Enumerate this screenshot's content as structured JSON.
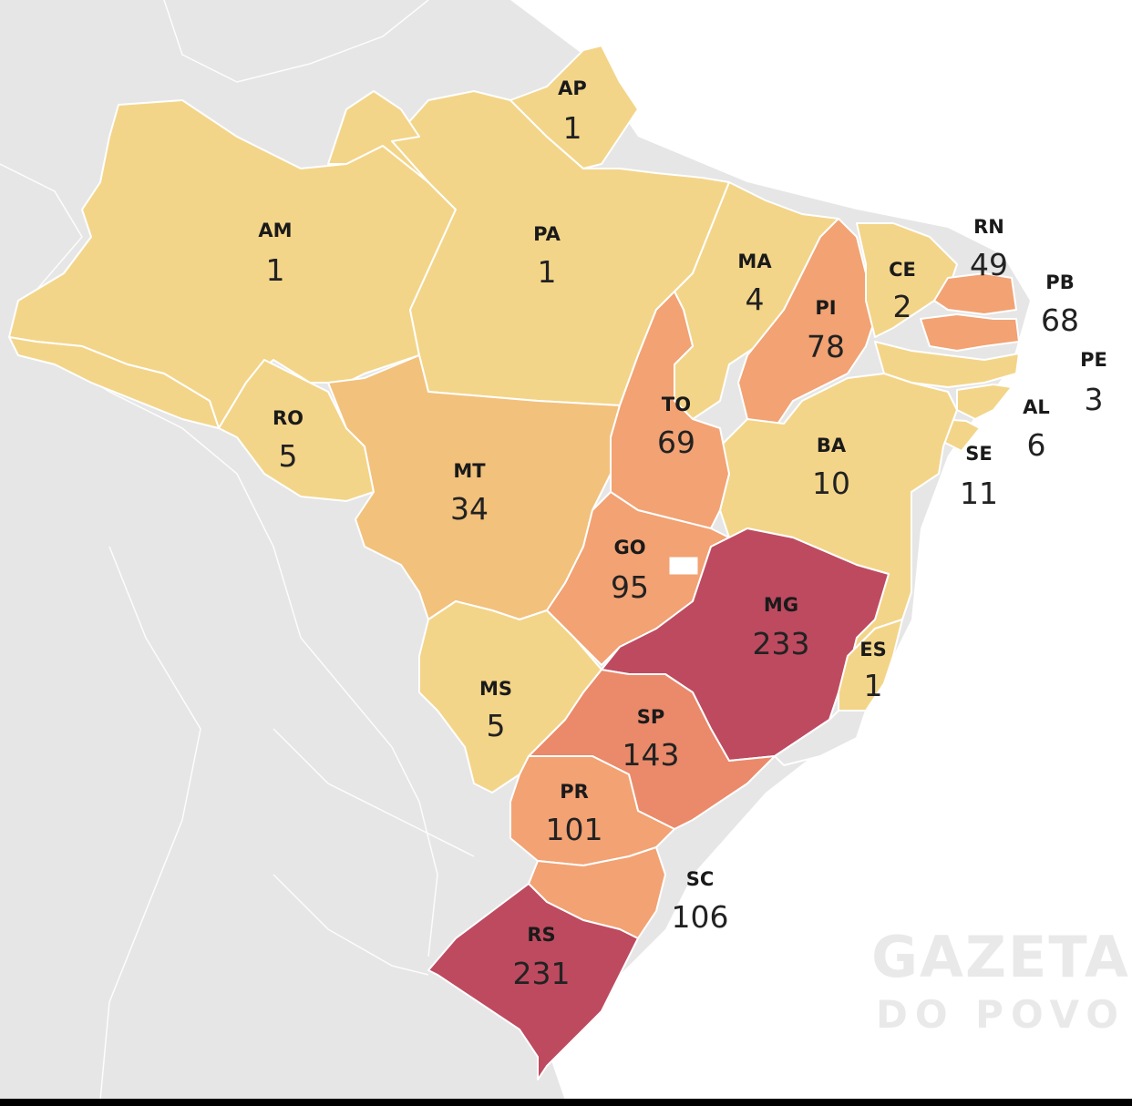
{
  "watermark": {
    "line1": "GAZETA",
    "line2": "DO POVO"
  },
  "colors": {
    "background": "#e4e4e4",
    "neighbors": "#ececec",
    "scale": [
      "#f3d589",
      "#f2c17c",
      "#f2a273",
      "#ea8a6a",
      "#be4a60"
    ]
  },
  "states": [
    {
      "code": "AP",
      "value": "1"
    },
    {
      "code": "AM",
      "value": "1"
    },
    {
      "code": "PA",
      "value": "1"
    },
    {
      "code": "MA",
      "value": "4"
    },
    {
      "code": "PI",
      "value": "78"
    },
    {
      "code": "CE",
      "value": "2"
    },
    {
      "code": "RN",
      "value": "49"
    },
    {
      "code": "PB",
      "value": "68"
    },
    {
      "code": "PE",
      "value": "3"
    },
    {
      "code": "AL",
      "value": "6"
    },
    {
      "code": "SE",
      "value": "11"
    },
    {
      "code": "RO",
      "value": "5"
    },
    {
      "code": "MT",
      "value": "34"
    },
    {
      "code": "TO",
      "value": "69"
    },
    {
      "code": "BA",
      "value": "10"
    },
    {
      "code": "GO",
      "value": "95"
    },
    {
      "code": "MG",
      "value": "233"
    },
    {
      "code": "ES",
      "value": "1"
    },
    {
      "code": "MS",
      "value": "5"
    },
    {
      "code": "SP",
      "value": "143"
    },
    {
      "code": "PR",
      "value": "101"
    },
    {
      "code": "SC",
      "value": "106"
    },
    {
      "code": "RS",
      "value": "231"
    }
  ]
}
